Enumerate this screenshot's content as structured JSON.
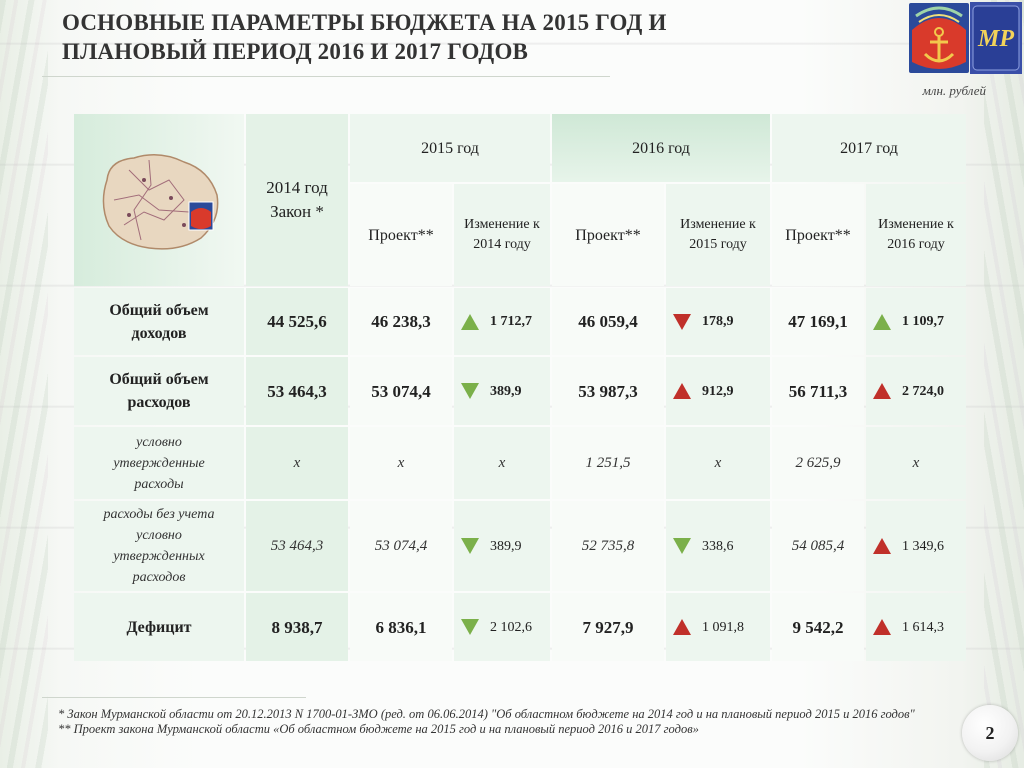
{
  "title_line1": "ОСНОВНЫЕ  ПАРАМЕТРЫ БЮДЖЕТА НА 2015 ГОД И",
  "title_line2": "ПЛАНОВЫЙ ПЕРИОД 2016 И 2017 ГОДОВ",
  "units": "млн. рублей",
  "logo_text": "МР",
  "colors": {
    "up": "#7bb04a",
    "down": "#c0302a",
    "up_arrow_meaning": "green",
    "down_arrow_meaning": "red"
  },
  "headers": {
    "col2014_line1": "2014 год",
    "col2014_line2": "Закон *",
    "y2015": "2015 год",
    "y2016": "2016 год",
    "y2017": "2017 год",
    "project": "Проект**",
    "chg2014_line1": "Изменение к",
    "chg2014_line2": "2014 году",
    "chg2015_line1": "Изменение к",
    "chg2015_line2": "2015 году",
    "chg2016_line1": "Изменение к",
    "chg2016_line2": "2016 году"
  },
  "rows": [
    {
      "label_l1": "Общий объем",
      "label_l2": "доходов",
      "label_l3": "",
      "label_l4": "",
      "v2014": "44 525,6",
      "v2015": "46 238,3",
      "c2015": "1 712,7",
      "d2015": "up",
      "v2016": "46 059,4",
      "c2016": "178,9",
      "d2016": "down",
      "v2017": "47 169,1",
      "c2017": "1 109,7",
      "d2017": "up"
    },
    {
      "label_l1": "Общий объем",
      "label_l2": "расходов",
      "label_l3": "",
      "label_l4": "",
      "v2014": "53 464,3",
      "v2015": "53 074,4",
      "c2015": "389,9",
      "d2015": "down",
      "v2016": "53 987,3",
      "c2016": "912,9",
      "d2016": "up",
      "v2017": "56 711,3",
      "c2017": "2 724,0",
      "d2017": "up"
    },
    {
      "label_l1": "условно",
      "label_l2": "утвержденные",
      "label_l3": "расходы",
      "label_l4": "",
      "v2014": "х",
      "v2015": "х",
      "c2015": "х",
      "d2015": "none",
      "v2016": "1 251,5",
      "c2016": "х",
      "d2016": "none",
      "v2017": "2 625,9",
      "c2017": "х",
      "d2017": "none"
    },
    {
      "label_l1": "расходы без учета",
      "label_l2": "условно",
      "label_l3": "утвержденных",
      "label_l4": "расходов",
      "v2014": "53 464,3",
      "v2015": "53 074,4",
      "c2015": "389,9",
      "d2015": "down",
      "v2016": "52 735,8",
      "c2016": "338,6",
      "d2016": "down",
      "v2017": "54 085,4",
      "c2017": "1 349,6",
      "d2017": "up"
    },
    {
      "label_l1": "Дефицит",
      "label_l2": "",
      "label_l3": "",
      "label_l4": "",
      "v2014": "8 938,7",
      "v2015": "6 836,1",
      "c2015": "2 102,6",
      "d2015": "down",
      "v2016": "7 927,9",
      "c2016": "1 091,8",
      "d2016": "up",
      "v2017": "9 542,2",
      "c2017": "1 614,3",
      "d2017": "up"
    }
  ],
  "footnote1": "* Закон Мурманской области от 20.12.2013 N 1700-01-ЗМО (ред. от 06.06.2014) \"Об областном бюджете на 2014 год и на плановый период 2015 и 2016 годов\"",
  "footnote2": "** Проект закона Мурманской области «Об областном бюджете на 2015 год и на плановый период 2016 и 2017 годов»",
  "page_number": "2"
}
